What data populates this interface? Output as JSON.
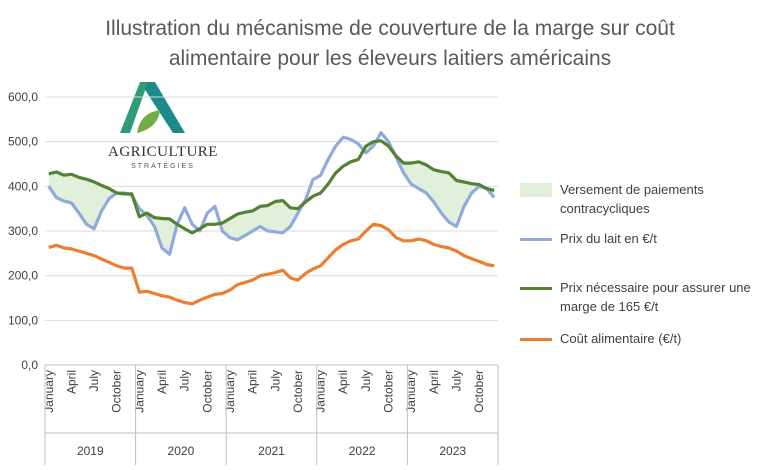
{
  "chart_data": {
    "type": "line",
    "title": "Illustration du mécanisme de couverture de la marge sur coût alimentaire pour les éleveurs laitiers américains",
    "logo": {
      "name": "AGRICULTURE",
      "tagline": "STRATÉGIES"
    },
    "categories": [
      "January",
      null,
      null,
      "April",
      null,
      null,
      "July",
      null,
      null,
      "October",
      null,
      null,
      "January",
      null,
      null,
      "April",
      null,
      null,
      "July",
      null,
      null,
      "October",
      null,
      null,
      "January",
      null,
      null,
      "April",
      null,
      null,
      "July",
      null,
      null,
      "October",
      null,
      null,
      "January",
      null,
      null,
      "April",
      null,
      null,
      "July",
      null,
      null,
      "October",
      null,
      null,
      "January",
      null,
      null,
      "April",
      null,
      null,
      "July",
      null,
      null,
      "October",
      null,
      null
    ],
    "years": [
      "2019",
      "2020",
      "2021",
      "2022",
      "2023"
    ],
    "ylim": [
      0,
      600
    ],
    "yticks": [
      {
        "value": 0,
        "label": "0,0"
      },
      {
        "value": 100,
        "label": "100,0"
      },
      {
        "value": 200,
        "label": "200,0"
      },
      {
        "value": 300,
        "label": "300,0"
      },
      {
        "value": 400,
        "label": "400,0"
      },
      {
        "value": 500,
        "label": "500,0"
      },
      {
        "value": 600,
        "label": "600,0"
      }
    ],
    "grid": true,
    "fill_between": {
      "name": "Versement de paiements contracycliques",
      "color": "#e2efda",
      "upper": 1,
      "lower": 0
    },
    "series": [
      {
        "name": "Prix du lait en €/t",
        "color": "#8faadc",
        "values": [
          400,
          375,
          367,
          363,
          340,
          315,
          305,
          345,
          373,
          385,
          385,
          380,
          350,
          335,
          310,
          262,
          248,
          315,
          352,
          315,
          300,
          340,
          355,
          300,
          285,
          280,
          290,
          300,
          310,
          300,
          298,
          296,
          310,
          340,
          370,
          415,
          425,
          460,
          490,
          510,
          505,
          495,
          475,
          490,
          520,
          500,
          465,
          430,
          405,
          395,
          385,
          365,
          340,
          320,
          310,
          355,
          385,
          400,
          395,
          375
        ]
      },
      {
        "name": "Prix nécessaire pour assurer une marge de 165 €/t",
        "color": "#548235",
        "values": [
          428,
          432,
          425,
          427,
          420,
          416,
          410,
          402,
          395,
          385,
          383,
          383,
          332,
          340,
          330,
          328,
          327,
          315,
          305,
          296,
          305,
          315,
          315,
          318,
          328,
          338,
          342,
          345,
          355,
          357,
          366,
          368,
          352,
          350,
          365,
          378,
          385,
          405,
          430,
          445,
          455,
          460,
          490,
          500,
          502,
          490,
          468,
          452,
          452,
          455,
          448,
          437,
          433,
          430,
          413,
          410,
          406,
          404,
          395,
          391
        ]
      },
      {
        "name": "Coût alimentaire (€/t)",
        "color": "#ed7d31",
        "values": [
          263,
          268,
          262,
          260,
          255,
          250,
          245,
          237,
          230,
          222,
          217,
          217,
          163,
          165,
          160,
          155,
          152,
          145,
          140,
          137,
          145,
          152,
          158,
          160,
          168,
          180,
          185,
          190,
          200,
          203,
          207,
          212,
          195,
          190,
          205,
          215,
          222,
          240,
          258,
          270,
          278,
          282,
          300,
          315,
          312,
          303,
          285,
          278,
          278,
          282,
          278,
          270,
          265,
          262,
          255,
          245,
          238,
          232,
          225,
          222
        ]
      }
    ]
  }
}
